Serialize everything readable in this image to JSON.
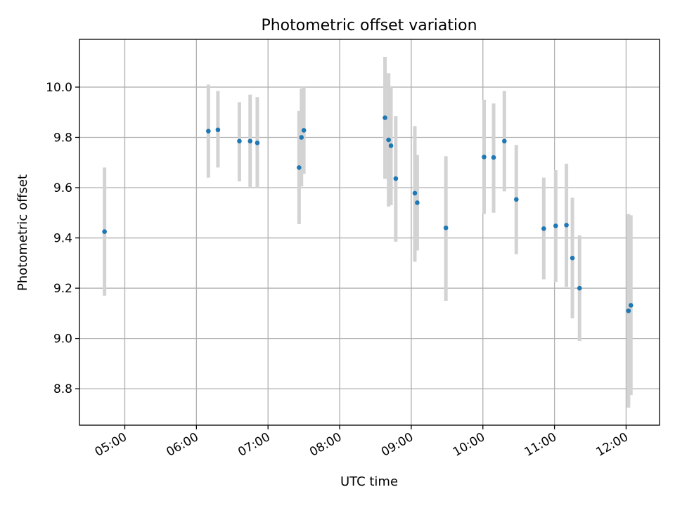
{
  "chart_data": {
    "type": "scatter",
    "title": "Photometric offset variation",
    "xlabel": "UTC time",
    "ylabel": "Photometric offset",
    "xlim": [
      "04:22",
      "12:28"
    ],
    "ylim": [
      8.655,
      10.19
    ],
    "grid": true,
    "x_ticks": [
      "05:00",
      "06:00",
      "07:00",
      "08:00",
      "09:00",
      "10:00",
      "11:00",
      "12:00"
    ],
    "y_ticks": [
      8.8,
      9.0,
      9.2,
      9.4,
      9.6,
      9.8,
      10.0
    ],
    "y_tick_labels": [
      "8.8",
      "9.0",
      "9.2",
      "9.4",
      "9.6",
      "9.8",
      "10.0"
    ],
    "colors": {
      "point": "#1f77b4",
      "errorbar": "#d3d3d3",
      "grid": "#b0b0b0"
    },
    "series": [
      {
        "points": [
          {
            "t": "04:43",
            "y": 9.425,
            "lo": 9.17,
            "hi": 9.68
          },
          {
            "t": "06:10",
            "y": 9.825,
            "lo": 9.64,
            "hi": 10.01
          },
          {
            "t": "06:18",
            "y": 9.83,
            "lo": 9.68,
            "hi": 9.985
          },
          {
            "t": "06:36",
            "y": 9.785,
            "lo": 9.625,
            "hi": 9.94
          },
          {
            "t": "06:45",
            "y": 9.785,
            "lo": 9.6,
            "hi": 9.97
          },
          {
            "t": "06:51",
            "y": 9.778,
            "lo": 9.6,
            "hi": 9.96
          },
          {
            "t": "07:26",
            "y": 9.68,
            "lo": 9.455,
            "hi": 9.905
          },
          {
            "t": "07:28",
            "y": 9.8,
            "lo": 9.605,
            "hi": 9.995
          },
          {
            "t": "07:30",
            "y": 9.828,
            "lo": 9.655,
            "hi": 10.0
          },
          {
            "t": "08:38",
            "y": 9.878,
            "lo": 9.635,
            "hi": 10.12
          },
          {
            "t": "08:41",
            "y": 9.79,
            "lo": 9.525,
            "hi": 10.055
          },
          {
            "t": "08:43",
            "y": 9.767,
            "lo": 9.53,
            "hi": 10.0
          },
          {
            "t": "08:47",
            "y": 9.636,
            "lo": 9.385,
            "hi": 9.885
          },
          {
            "t": "09:03",
            "y": 9.578,
            "lo": 9.305,
            "hi": 9.845
          },
          {
            "t": "09:05",
            "y": 9.54,
            "lo": 9.35,
            "hi": 9.73
          },
          {
            "t": "09:29",
            "y": 9.44,
            "lo": 9.15,
            "hi": 9.725
          },
          {
            "t": "10:01",
            "y": 9.722,
            "lo": 9.495,
            "hi": 9.95
          },
          {
            "t": "10:09",
            "y": 9.72,
            "lo": 9.5,
            "hi": 9.935
          },
          {
            "t": "10:18",
            "y": 9.785,
            "lo": 9.585,
            "hi": 9.985
          },
          {
            "t": "10:28",
            "y": 9.553,
            "lo": 9.335,
            "hi": 9.77
          },
          {
            "t": "10:51",
            "y": 9.437,
            "lo": 9.235,
            "hi": 9.64
          },
          {
            "t": "11:01",
            "y": 9.448,
            "lo": 9.225,
            "hi": 9.67
          },
          {
            "t": "11:10",
            "y": 9.451,
            "lo": 9.205,
            "hi": 9.695
          },
          {
            "t": "11:15",
            "y": 9.32,
            "lo": 9.08,
            "hi": 9.56
          },
          {
            "t": "11:21",
            "y": 9.2,
            "lo": 8.99,
            "hi": 9.41
          },
          {
            "t": "12:02",
            "y": 9.11,
            "lo": 8.725,
            "hi": 9.495
          },
          {
            "t": "12:04",
            "y": 9.132,
            "lo": 8.775,
            "hi": 9.49
          }
        ]
      }
    ]
  }
}
